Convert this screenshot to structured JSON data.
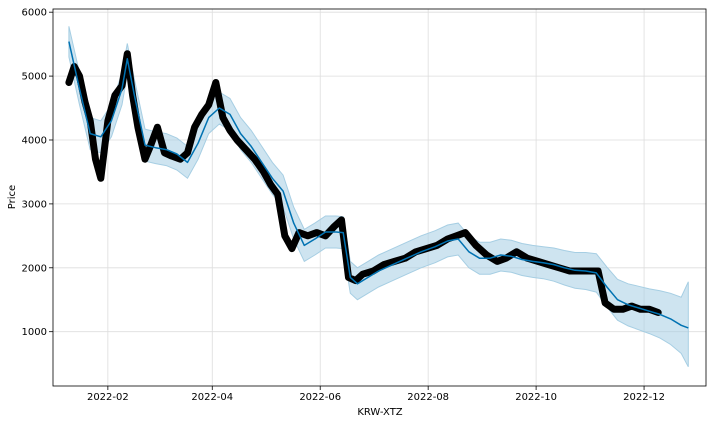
{
  "chart_data": {
    "type": "line",
    "title": "",
    "xlabel": "KRW-XTZ",
    "ylabel": "Price",
    "x_range": [
      "2022-01-01",
      "2023-01-05"
    ],
    "ylim": [
      150,
      6050
    ],
    "grid": true,
    "x_ticks": [
      "2022-02-01",
      "2022-04-01",
      "2022-06-01",
      "2022-08-01",
      "2022-10-01",
      "2022-12-01"
    ],
    "x_tick_labels": [
      "2022-02",
      "2022-04",
      "2022-06",
      "2022-08",
      "2022-10",
      "2022-12"
    ],
    "y_ticks": [
      1000,
      2000,
      3000,
      4000,
      5000,
      6000
    ],
    "y_tick_labels": [
      "1000",
      "2000",
      "3000",
      "4000",
      "5000",
      "6000"
    ],
    "colors": {
      "observed": "#000000",
      "forecast": "#0072b2",
      "interval": "#a6cee3",
      "grid": "#dddddd"
    },
    "series": [
      {
        "role": "observed",
        "marker": "dot",
        "x": [
          "2022-01-10",
          "2022-01-13",
          "2022-01-16",
          "2022-01-19",
          "2022-01-22",
          "2022-01-25",
          "2022-01-28",
          "2022-02-01",
          "2022-02-05",
          "2022-02-09",
          "2022-02-12",
          "2022-02-15",
          "2022-02-18",
          "2022-02-22",
          "2022-02-25",
          "2022-03-01",
          "2022-03-05",
          "2022-03-09",
          "2022-03-14",
          "2022-03-18",
          "2022-03-22",
          "2022-03-26",
          "2022-03-30",
          "2022-04-03",
          "2022-04-07",
          "2022-04-11",
          "2022-04-15",
          "2022-04-20",
          "2022-04-25",
          "2022-04-30",
          "2022-05-04",
          "2022-05-08",
          "2022-05-12",
          "2022-05-16",
          "2022-05-20",
          "2022-05-25",
          "2022-05-30",
          "2022-06-04",
          "2022-06-09",
          "2022-06-13",
          "2022-06-17",
          "2022-06-21",
          "2022-06-25",
          "2022-07-01",
          "2022-07-07",
          "2022-07-13",
          "2022-07-19",
          "2022-07-25",
          "2022-07-31",
          "2022-08-06",
          "2022-08-12",
          "2022-08-17",
          "2022-08-22",
          "2022-08-28",
          "2022-09-03",
          "2022-09-09",
          "2022-09-14",
          "2022-09-20",
          "2022-09-26",
          "2022-10-02",
          "2022-10-08",
          "2022-10-14",
          "2022-10-20",
          "2022-10-26",
          "2022-11-01",
          "2022-11-05",
          "2022-11-09",
          "2022-11-14",
          "2022-11-19",
          "2022-11-24",
          "2022-11-29",
          "2022-12-04",
          "2022-12-09"
        ],
        "y": [
          4900,
          5150,
          5000,
          4600,
          4300,
          3700,
          3400,
          4300,
          4700,
          4850,
          5350,
          4700,
          4200,
          3700,
          3900,
          4200,
          3800,
          3750,
          3700,
          3800,
          4200,
          4400,
          4550,
          4900,
          4350,
          4150,
          4000,
          3850,
          3700,
          3500,
          3300,
          3150,
          2500,
          2300,
          2550,
          2500,
          2550,
          2500,
          2650,
          2750,
          1850,
          1800,
          1900,
          1950,
          2050,
          2100,
          2150,
          2250,
          2300,
          2350,
          2450,
          2500,
          2550,
          2350,
          2200,
          2100,
          2150,
          2250,
          2150,
          2100,
          2050,
          2000,
          1950,
          1950,
          1950,
          1950,
          1450,
          1350,
          1350,
          1400,
          1350,
          1350,
          1300
        ]
      },
      {
        "role": "forecast",
        "x": [
          "2022-01-10",
          "2022-01-16",
          "2022-01-22",
          "2022-01-28",
          "2022-02-03",
          "2022-02-09",
          "2022-02-12",
          "2022-02-16",
          "2022-02-22",
          "2022-02-28",
          "2022-03-06",
          "2022-03-12",
          "2022-03-18",
          "2022-03-24",
          "2022-03-30",
          "2022-04-05",
          "2022-04-11",
          "2022-04-17",
          "2022-04-23",
          "2022-04-29",
          "2022-05-05",
          "2022-05-11",
          "2022-05-17",
          "2022-05-23",
          "2022-05-29",
          "2022-06-04",
          "2022-06-10",
          "2022-06-14",
          "2022-06-18",
          "2022-06-22",
          "2022-06-28",
          "2022-07-04",
          "2022-07-12",
          "2022-07-20",
          "2022-07-28",
          "2022-08-05",
          "2022-08-12",
          "2022-08-18",
          "2022-08-24",
          "2022-08-30",
          "2022-09-05",
          "2022-09-11",
          "2022-09-17",
          "2022-09-23",
          "2022-09-29",
          "2022-10-05",
          "2022-10-11",
          "2022-10-17",
          "2022-10-23",
          "2022-10-29",
          "2022-11-04",
          "2022-11-10",
          "2022-11-16",
          "2022-11-22",
          "2022-11-28",
          "2022-12-04",
          "2022-12-10",
          "2022-12-16",
          "2022-12-22",
          "2022-12-26"
        ],
        "y": [
          5540,
          4800,
          4100,
          4050,
          4300,
          4800,
          5270,
          4700,
          3920,
          3880,
          3850,
          3780,
          3650,
          3950,
          4350,
          4500,
          4400,
          4100,
          3900,
          3650,
          3400,
          3200,
          2700,
          2350,
          2450,
          2560,
          2560,
          2550,
          1850,
          1750,
          1850,
          1950,
          2050,
          2150,
          2250,
          2330,
          2420,
          2450,
          2250,
          2150,
          2150,
          2200,
          2180,
          2130,
          2100,
          2080,
          2050,
          2000,
          1960,
          1950,
          1920,
          1700,
          1500,
          1420,
          1370,
          1320,
          1270,
          1200,
          1100,
          1060
        ]
      },
      {
        "role": "interval",
        "x": [
          "2022-01-10",
          "2022-01-16",
          "2022-01-22",
          "2022-01-28",
          "2022-02-03",
          "2022-02-09",
          "2022-02-12",
          "2022-02-16",
          "2022-02-22",
          "2022-02-28",
          "2022-03-06",
          "2022-03-12",
          "2022-03-18",
          "2022-03-24",
          "2022-03-30",
          "2022-04-05",
          "2022-04-11",
          "2022-04-17",
          "2022-04-23",
          "2022-04-29",
          "2022-05-05",
          "2022-05-11",
          "2022-05-17",
          "2022-05-23",
          "2022-05-29",
          "2022-06-04",
          "2022-06-10",
          "2022-06-14",
          "2022-06-18",
          "2022-06-22",
          "2022-06-28",
          "2022-07-04",
          "2022-07-12",
          "2022-07-20",
          "2022-07-28",
          "2022-08-05",
          "2022-08-12",
          "2022-08-18",
          "2022-08-24",
          "2022-08-30",
          "2022-09-05",
          "2022-09-11",
          "2022-09-17",
          "2022-09-23",
          "2022-09-29",
          "2022-10-05",
          "2022-10-11",
          "2022-10-17",
          "2022-10-23",
          "2022-10-29",
          "2022-11-04",
          "2022-11-10",
          "2022-11-16",
          "2022-11-22",
          "2022-11-28",
          "2022-12-04",
          "2022-12-10",
          "2022-12-16",
          "2022-12-22",
          "2022-12-26"
        ],
        "lower": [
          5300,
          4550,
          3850,
          3800,
          4050,
          4550,
          5030,
          4450,
          3670,
          3630,
          3600,
          3530,
          3400,
          3700,
          4100,
          4250,
          4150,
          3850,
          3650,
          3400,
          3150,
          2950,
          2450,
          2100,
          2200,
          2310,
          2310,
          2300,
          1600,
          1500,
          1600,
          1700,
          1800,
          1900,
          2000,
          2080,
          2170,
          2200,
          2000,
          1900,
          1900,
          1950,
          1930,
          1880,
          1850,
          1830,
          1790,
          1730,
          1680,
          1660,
          1620,
          1390,
          1180,
          1090,
          1030,
          970,
          900,
          800,
          660,
          450
        ],
        "upper": [
          5780,
          5050,
          4350,
          4300,
          4550,
          5050,
          5510,
          4950,
          4170,
          4130,
          4100,
          4030,
          3900,
          4200,
          4600,
          4750,
          4650,
          4350,
          4150,
          3900,
          3650,
          3450,
          2950,
          2600,
          2700,
          2810,
          2810,
          2800,
          2100,
          2000,
          2100,
          2200,
          2300,
          2400,
          2500,
          2580,
          2670,
          2700,
          2500,
          2400,
          2400,
          2450,
          2430,
          2380,
          2350,
          2330,
          2310,
          2270,
          2240,
          2240,
          2220,
          2010,
          1820,
          1750,
          1710,
          1670,
          1640,
          1600,
          1540,
          1780
        ]
      }
    ]
  }
}
